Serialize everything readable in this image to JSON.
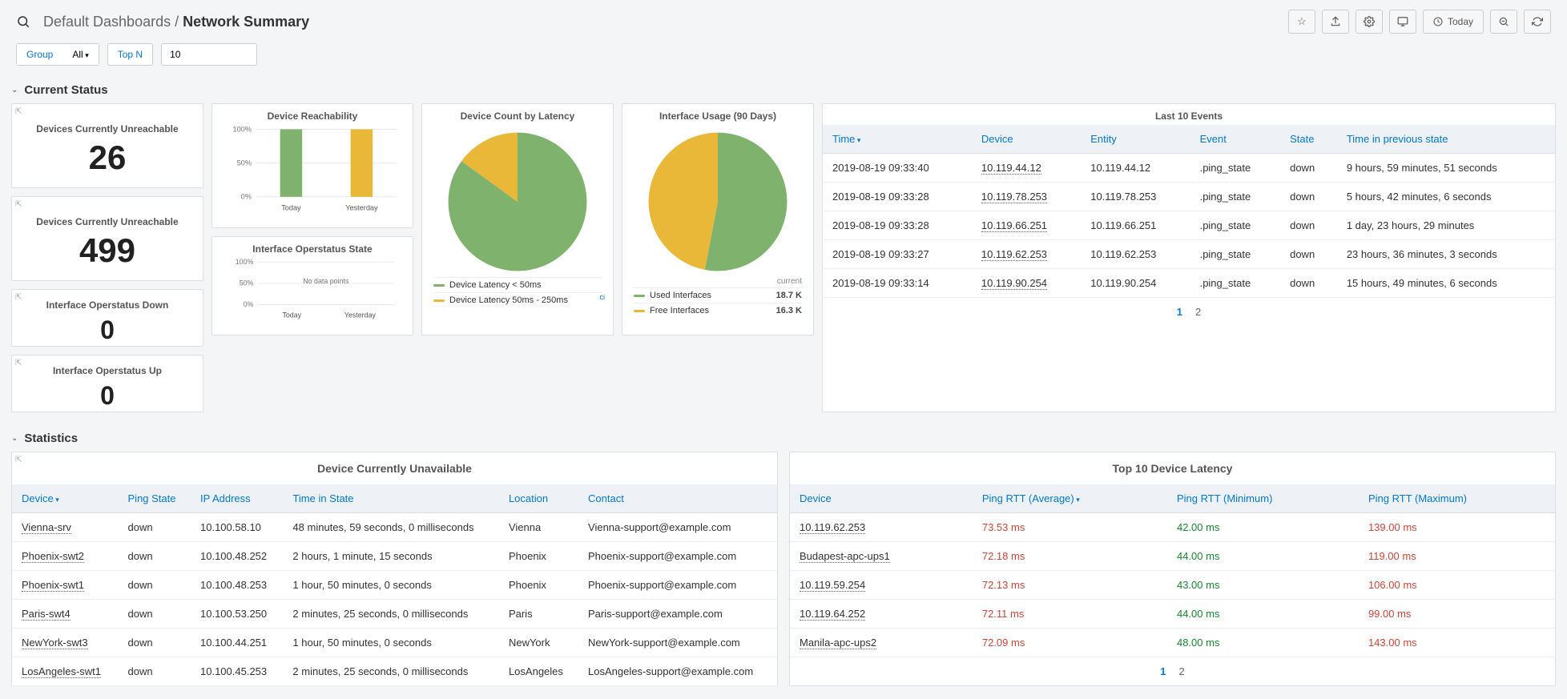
{
  "breadcrumb": {
    "parent": "Default Dashboards",
    "sep": " / ",
    "current": "Network Summary"
  },
  "timerange": "Today",
  "filters": {
    "group": "Group",
    "all": "All",
    "topn": "Top N",
    "topn_val": "10"
  },
  "sections": {
    "current_status": "Current Status",
    "statistics": "Statistics"
  },
  "colors": {
    "green": "#7eb26d",
    "yellow": "#eab839",
    "bg": "#ffffff",
    "grid": "#e0e0e0",
    "link": "#0078d4"
  },
  "stat_cards": [
    {
      "title": "Devices Currently Unreachable",
      "value": "26"
    },
    {
      "title": "Devices Currently Unreachable",
      "value": "499"
    },
    {
      "title": "Interface Operstatus Down",
      "value": "0"
    },
    {
      "title": "Interface Operstatus Up",
      "value": "0"
    }
  ],
  "reachability": {
    "title": "Device Reachability",
    "ylim": [
      0,
      100
    ],
    "yticks": [
      "0%",
      "50%",
      "100%"
    ],
    "categories": [
      "Today",
      "Yesterday"
    ],
    "values": [
      100,
      100
    ],
    "bar_colors": [
      "#7eb26d",
      "#eab839"
    ]
  },
  "operstatus": {
    "title": "Interface Operstatus State",
    "ylim": [
      0,
      100
    ],
    "yticks": [
      "0%",
      "50%",
      "100%"
    ],
    "categories": [
      "Today",
      "Yesterday"
    ],
    "nodata": "No data points"
  },
  "latency_pie": {
    "title": "Device Count by Latency",
    "type": "pie",
    "slices": [
      {
        "label": "Device Latency < 50ms",
        "pct": 85,
        "color": "#7eb26d"
      },
      {
        "label": "Device Latency 50ms - 250ms",
        "pct": 15,
        "color": "#eab839"
      }
    ],
    "ci": "ci"
  },
  "usage_pie": {
    "title": "Interface Usage (90 Days)",
    "type": "pie",
    "head": "current",
    "slices": [
      {
        "label": "Used Interfaces",
        "pct": 53,
        "color": "#7eb26d",
        "value": "18.7 K"
      },
      {
        "label": "Free Interfaces",
        "pct": 47,
        "color": "#eab839",
        "value": "16.3 K"
      }
    ]
  },
  "events": {
    "title": "Last 10 Events",
    "columns": [
      "Time",
      "Device",
      "Entity",
      "Event",
      "State",
      "Time in previous state"
    ],
    "sorted_col": 0,
    "rows": [
      [
        "2019-08-19 09:33:40",
        "10.119.44.12",
        "10.119.44.12",
        ".ping_state",
        "down",
        "9 hours, 59 minutes, 51 seconds"
      ],
      [
        "2019-08-19 09:33:28",
        "10.119.78.253",
        "10.119.78.253",
        ".ping_state",
        "down",
        "5 hours, 42 minutes, 6 seconds"
      ],
      [
        "2019-08-19 09:33:28",
        "10.119.66.251",
        "10.119.66.251",
        ".ping_state",
        "down",
        "1 day, 23 hours, 29 minutes"
      ],
      [
        "2019-08-19 09:33:27",
        "10.119.62.253",
        "10.119.62.253",
        ".ping_state",
        "down",
        "23 hours, 36 minutes, 3 seconds"
      ],
      [
        "2019-08-19 09:33:14",
        "10.119.90.254",
        "10.119.90.254",
        ".ping_state",
        "down",
        "15 hours, 49 minutes, 6 seconds"
      ]
    ],
    "pages": [
      "1",
      "2"
    ],
    "active_page": 0
  },
  "unavailable": {
    "title": "Device Currently Unavailable",
    "columns": [
      "Device",
      "Ping State",
      "IP Address",
      "Time in State",
      "Location",
      "Contact"
    ],
    "sorted_col": 0,
    "rows": [
      [
        "Vienna-srv",
        "down",
        "10.100.58.10",
        "48 minutes, 59 seconds, 0 milliseconds",
        "Vienna",
        "Vienna-support@example.com"
      ],
      [
        "Phoenix-swt2",
        "down",
        "10.100.48.252",
        "2 hours, 1 minute, 15 seconds",
        "Phoenix",
        "Phoenix-support@example.com"
      ],
      [
        "Phoenix-swt1",
        "down",
        "10.100.48.253",
        "1 hour, 50 minutes, 0 seconds",
        "Phoenix",
        "Phoenix-support@example.com"
      ],
      [
        "Paris-swt4",
        "down",
        "10.100.53.250",
        "2 minutes, 25 seconds, 0 milliseconds",
        "Paris",
        "Paris-support@example.com"
      ],
      [
        "NewYork-swt3",
        "down",
        "10.100.44.251",
        "1 hour, 50 minutes, 0 seconds",
        "NewYork",
        "NewYork-support@example.com"
      ],
      [
        "LosAngeles-swt1",
        "down",
        "10.100.45.253",
        "2 minutes, 25 seconds, 0 milliseconds",
        "LosAngeles",
        "LosAngeles-support@example.com"
      ]
    ]
  },
  "top_latency": {
    "title": "Top 10 Device Latency",
    "columns": [
      "Device",
      "Ping RTT (Average)",
      "Ping RTT (Minimum)",
      "Ping RTT (Maximum)"
    ],
    "sorted_col": 1,
    "rows": [
      [
        "10.119.62.253",
        "73.53 ms",
        "42.00 ms",
        "139.00 ms"
      ],
      [
        "Budapest-apc-ups1",
        "72.18 ms",
        "44.00 ms",
        "119.00 ms"
      ],
      [
        "10.119.59.254",
        "72.13 ms",
        "43.00 ms",
        "106.00 ms"
      ],
      [
        "10.119.64.252",
        "72.11 ms",
        "44.00 ms",
        "99.00 ms"
      ],
      [
        "Manila-apc-ups2",
        "72.09 ms",
        "48.00 ms",
        "143.00 ms"
      ]
    ],
    "pages": [
      "1",
      "2"
    ],
    "active_page": 0
  }
}
